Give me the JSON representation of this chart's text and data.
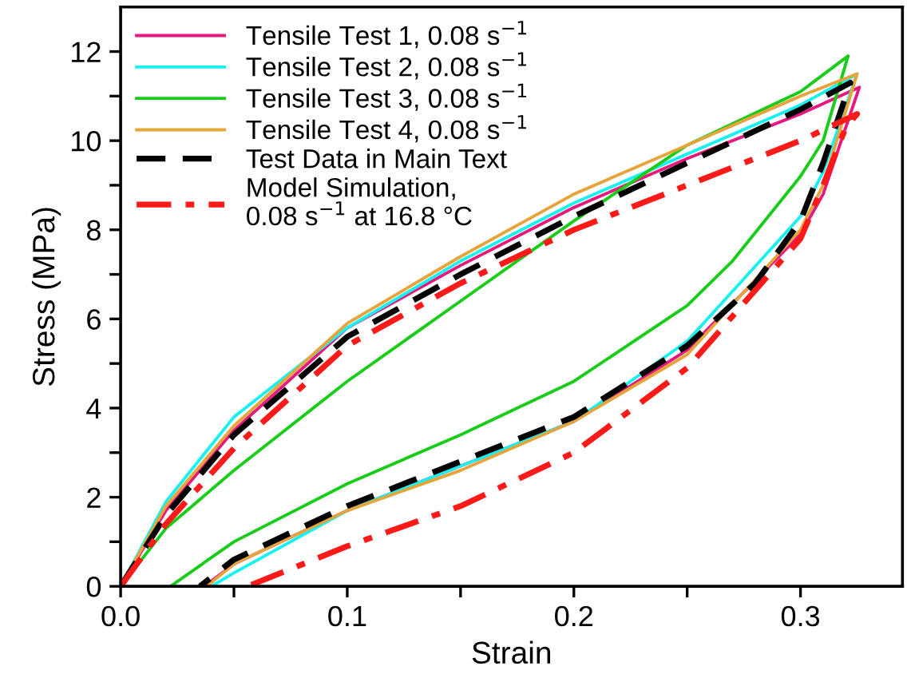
{
  "chart_data": {
    "type": "line",
    "xlabel": "Strain",
    "ylabel": "Stress (MPa)",
    "xlim": [
      0,
      0.345
    ],
    "ylim": [
      0,
      13
    ],
    "xticks": [
      {
        "value": 0,
        "label": "0.0"
      },
      {
        "value": 0.05,
        "label": null
      },
      0.1,
      {
        "value": 0.15,
        "label": null
      },
      0.2,
      {
        "value": 0.25,
        "label": null
      },
      0.3
    ],
    "yticks": [
      0,
      {
        "value": 1,
        "label": null
      },
      2,
      {
        "value": 3,
        "label": null
      },
      4,
      {
        "value": 5,
        "label": null
      },
      6,
      {
        "value": 7,
        "label": null
      },
      8,
      {
        "value": 9,
        "label": null
      },
      10,
      {
        "value": 11,
        "label": null
      },
      12
    ],
    "grid": false,
    "legend": "top left",
    "series": [
      {
        "name": "Tensile Test 1, 0.08 s$^{−1}$",
        "color": "#e6197f",
        "line_style": "solid",
        "x": [
          0,
          0.02,
          0.05,
          0.1,
          0.15,
          0.2,
          0.25,
          0.3,
          0.326,
          0.31,
          0.3,
          0.25,
          0.2,
          0.15,
          0.1,
          0.05,
          0.037
        ],
        "values": [
          0,
          1.7,
          3.5,
          5.8,
          7.2,
          8.5,
          9.6,
          10.6,
          11.2,
          8.8,
          7.9,
          5.3,
          3.7,
          2.7,
          1.7,
          0.5,
          0
        ]
      },
      {
        "name": "Tensile Test 2, 0.08 s$^{−1}$",
        "color": "#19f0f0",
        "line_style": "solid",
        "x": [
          0,
          0.02,
          0.05,
          0.1,
          0.15,
          0.2,
          0.25,
          0.3,
          0.325,
          0.31,
          0.3,
          0.25,
          0.2,
          0.15,
          0.1,
          0.05,
          0.04
        ],
        "values": [
          0,
          1.9,
          3.8,
          5.8,
          7.3,
          8.6,
          9.7,
          10.8,
          11.5,
          9.3,
          8.3,
          5.5,
          3.7,
          2.7,
          1.7,
          0.3,
          0
        ]
      },
      {
        "name": "Tensile Test 3, 0.08 s$^{−1}$",
        "color": "#19cc19",
        "line_style": "solid",
        "x": [
          0,
          0.02,
          0.05,
          0.1,
          0.15,
          0.2,
          0.25,
          0.3,
          0.321,
          0.31,
          0.3,
          0.27,
          0.25,
          0.2,
          0.15,
          0.1,
          0.05,
          0.022
        ],
        "values": [
          0,
          1.3,
          2.6,
          4.6,
          6.4,
          8.2,
          9.9,
          11.1,
          11.9,
          10.0,
          9.2,
          7.3,
          6.3,
          4.6,
          3.4,
          2.3,
          1.0,
          0
        ]
      },
      {
        "name": "Tensile Test 4, 0.08 s$^{−1}$",
        "color": "#e6a53c",
        "line_style": "solid",
        "x": [
          0,
          0.02,
          0.05,
          0.1,
          0.15,
          0.2,
          0.25,
          0.3,
          0.325,
          0.31,
          0.3,
          0.25,
          0.2,
          0.15,
          0.1,
          0.05,
          0.038
        ],
        "values": [
          0,
          1.8,
          3.6,
          5.9,
          7.4,
          8.8,
          9.9,
          11.0,
          11.5,
          9.0,
          8.0,
          5.2,
          3.7,
          2.6,
          1.7,
          0.5,
          0
        ]
      },
      {
        "name": "Test Data in Main Text",
        "color": "#000000",
        "line_style": "dashed",
        "x": [
          0,
          0.02,
          0.05,
          0.1,
          0.15,
          0.2,
          0.25,
          0.3,
          0.322,
          0.31,
          0.3,
          0.28,
          0.25,
          0.2,
          0.15,
          0.1,
          0.05,
          0.035
        ],
        "values": [
          0,
          1.6,
          3.4,
          5.6,
          7.0,
          8.3,
          9.5,
          10.7,
          11.3,
          9.5,
          8.2,
          6.8,
          5.4,
          3.8,
          2.8,
          1.8,
          0.6,
          0
        ]
      },
      {
        "name": "Model Simulation,\n0.08 s$^{−1}$ at 16.8 °C",
        "color": "#ff1a1a",
        "line_style": "dashdot",
        "x": [
          0,
          0.02,
          0.05,
          0.1,
          0.15,
          0.2,
          0.25,
          0.3,
          0.325,
          0.32,
          0.31,
          0.3,
          0.25,
          0.2,
          0.15,
          0.1,
          0.056
        ],
        "values": [
          0,
          1.4,
          3.1,
          5.4,
          6.8,
          8.0,
          9.0,
          10.0,
          10.6,
          10.3,
          9.0,
          7.8,
          4.9,
          3.0,
          1.8,
          0.9,
          0
        ]
      }
    ]
  }
}
